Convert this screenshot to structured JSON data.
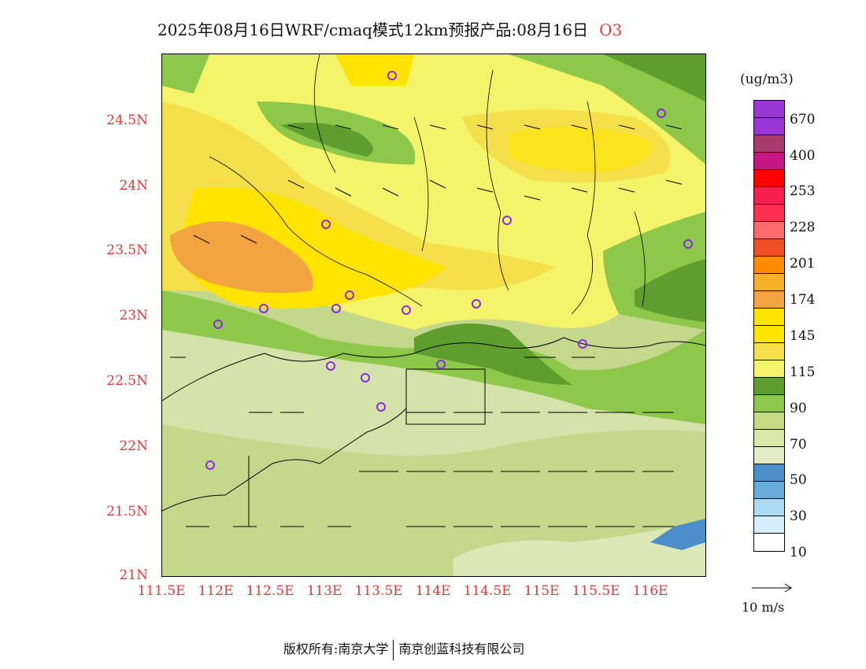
{
  "title": {
    "text": "2025年08月16日WRF/cmaq模式12km预报产品:08月16日",
    "species": "O3"
  },
  "axes": {
    "lat_labels": [
      "24.5N",
      "24N",
      "23.5N",
      "23N",
      "22.5N",
      "22N",
      "21.5N",
      "21N"
    ],
    "lon_labels": [
      "111.5E",
      "112E",
      "112.5E",
      "113E",
      "113.5E",
      "114E",
      "114.5E",
      "115E",
      "115.5E",
      "116E"
    ]
  },
  "legend": {
    "unit": "(ug/m3)",
    "labels": [
      "670",
      "400",
      "253",
      "228",
      "201",
      "174",
      "145",
      "115",
      "90",
      "70",
      "50",
      "30",
      "10"
    ],
    "colors": [
      "#9a35d6",
      "#a73a8e",
      "#c71585",
      "#ff0000",
      "#f23050",
      "#ff6060",
      "#f04e2a",
      "#ff8c00",
      "#f7b02a",
      "#f4a341",
      "#ffe400",
      "#f4e04a",
      "#f4f46a",
      "#5e9e2e",
      "#8ec84a",
      "#c3dc82",
      "#d8e6a8",
      "#e2ecc4",
      "#4c8ec8",
      "#68acdc",
      "#a8dcf4",
      "#d4eefa",
      "#ffffff"
    ]
  },
  "wind": {
    "reference_label": "10 m/s"
  },
  "map_colors": {
    "sea": "#c3d88a",
    "light_sea": "#dde8b8",
    "deep_blue": "#4c8ec8",
    "dark_green": "#5e9e2e",
    "green": "#8ec84a",
    "pale_yellow": "#f4f46a",
    "yellow": "#ffe400",
    "light_orange": "#f4e04a",
    "orange": "#f4a341"
  },
  "footer": {
    "left": "版权所有:南京大学",
    "right": "南京创蓝科技有限公司"
  }
}
